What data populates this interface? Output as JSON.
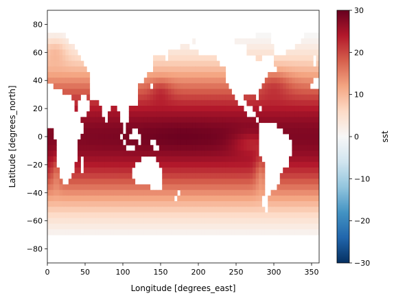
{
  "chart_data": {
    "type": "heatmap",
    "title": "",
    "xlabel": "Longitude [degrees_east]",
    "ylabel": "Latitude [degrees_north]",
    "xlim": [
      0,
      360
    ],
    "ylim": [
      -90,
      90
    ],
    "xticks": [
      0,
      50,
      100,
      150,
      200,
      250,
      300,
      350
    ],
    "yticks": [
      -80,
      -60,
      -40,
      -20,
      0,
      20,
      40,
      60,
      80
    ],
    "colorbar": {
      "label": "sst",
      "colormap": "RdBu_r",
      "range": [
        -30,
        30
      ],
      "ticks": [
        -30,
        -20,
        -10,
        0,
        10,
        20,
        30
      ]
    },
    "variable": "sst"
  }
}
